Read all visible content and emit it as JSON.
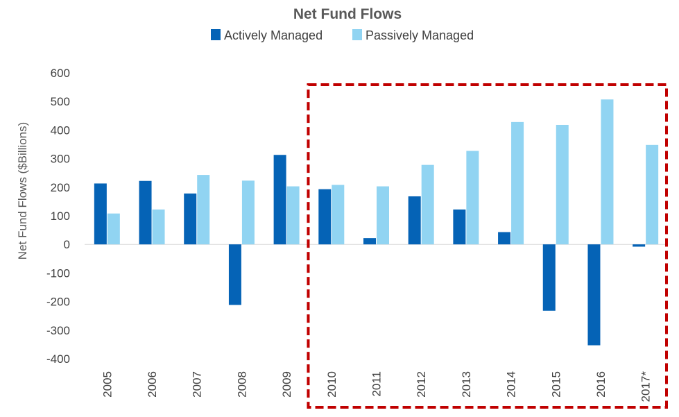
{
  "chart_data": {
    "type": "bar",
    "title": "Net Fund Flows",
    "ylabel": "Net Fund Flows ($Billions)",
    "xlabel": "",
    "ylim": [
      -400,
      600
    ],
    "yticks": [
      600,
      500,
      400,
      300,
      200,
      100,
      0,
      -100,
      -200,
      -300,
      -400
    ],
    "ytick_labels": [
      "600",
      "500",
      "400",
      "300",
      "200",
      "100",
      "0",
      "-100",
      "-200",
      "-300",
      "-400"
    ],
    "categories": [
      "2005",
      "2006",
      "2007",
      "2008",
      "2009",
      "2010",
      "2011",
      "2012",
      "2013",
      "2014",
      "2015",
      "2016",
      "2017*"
    ],
    "series": [
      {
        "name": "Actively Managed",
        "color": "#0563B6",
        "values": [
          213,
          222,
          178,
          -212,
          313,
          193,
          22,
          168,
          122,
          43,
          -232,
          -353,
          -8
        ]
      },
      {
        "name": "Passively Managed",
        "color": "#91D4F2",
        "values": [
          108,
          122,
          243,
          223,
          203,
          208,
          203,
          278,
          327,
          428,
          418,
          507,
          348
        ]
      }
    ],
    "legend_position": "top-center",
    "grid": false,
    "highlight_box": {
      "from_category": "2010",
      "to_category": "2017*",
      "color": "#C00000",
      "style": "dashed"
    }
  }
}
